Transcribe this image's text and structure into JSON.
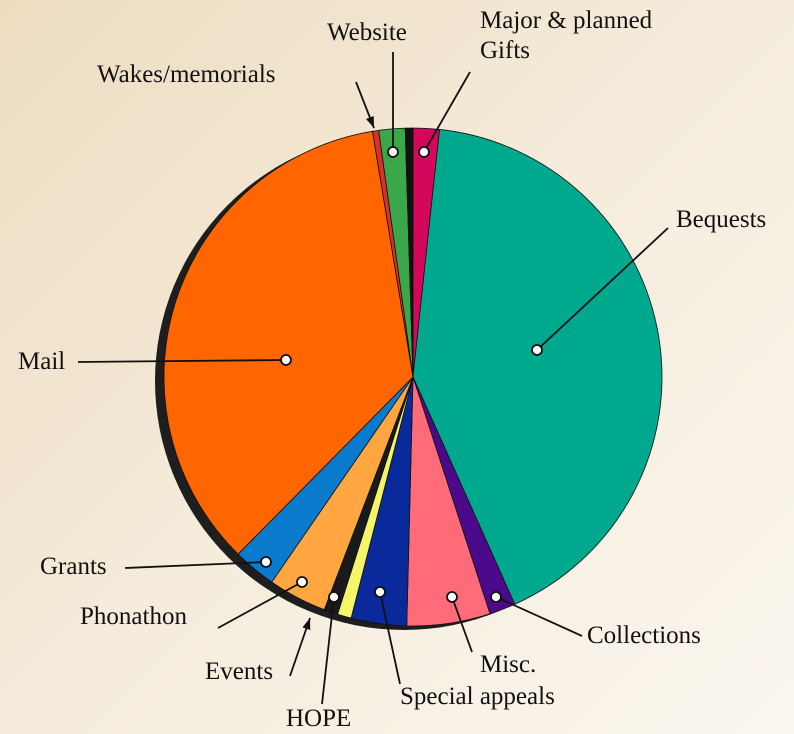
{
  "chart_data": {
    "type": "pie",
    "categories": [
      "Major & planned Gifts",
      "Bequests",
      "Collections",
      "Misc.",
      "Special appeals",
      "HOPE",
      "Events",
      "Phonathon",
      "Grants",
      "Mail",
      "Wakes/memorials",
      "Website",
      null
    ],
    "values": [
      1.7,
      41.6,
      1.7,
      5.4,
      3.6,
      0.9,
      0.9,
      3.8,
      2.8,
      35,
      0.4,
      1.7,
      0.5
    ],
    "colors": [
      "#d4085a",
      "#00a88e",
      "#4b0a8c",
      "#ff6b78",
      "#0a2a9c",
      "#f5f56a",
      "#1a1a1a",
      "#ffa640",
      "#0a7acc",
      "#ff6600",
      "#d8302a",
      "#3aa84a",
      "#111111"
    ]
  }
}
